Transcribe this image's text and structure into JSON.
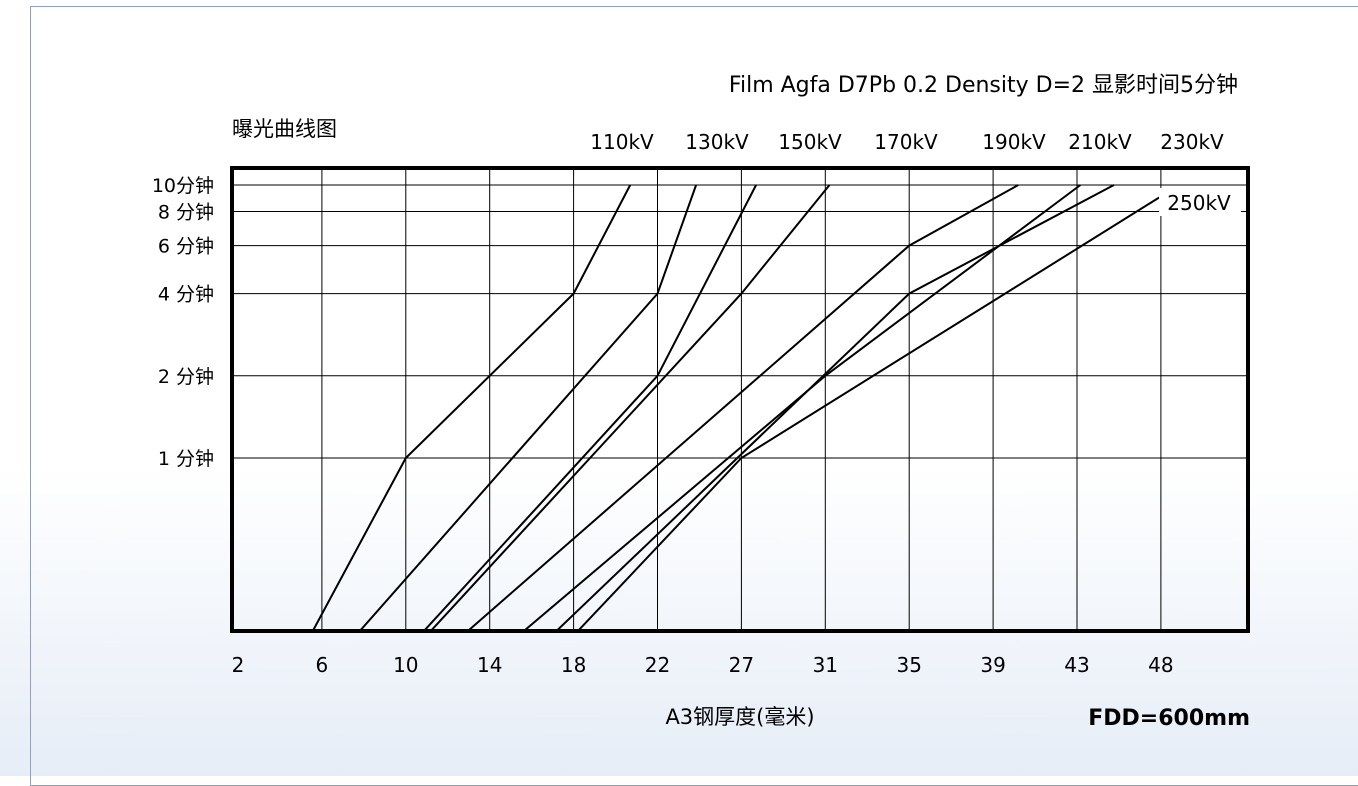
{
  "chart_data": {
    "type": "line",
    "title": "Film Agfa D7Pb 0.2 Density D=2 显影时间5分钟",
    "subtitle": "曝光曲线图",
    "xlabel": "A3钢厚度(毫米)",
    "ylabel": "",
    "footnote": "FDD=600mm",
    "x_ticks": [
      "2",
      "6",
      "10",
      "14",
      "18",
      "22",
      "27",
      "31",
      "35",
      "39",
      "43",
      "48"
    ],
    "y_ticks": [
      {
        "label": "10分钟",
        "value": 10
      },
      {
        "label": "8 分钟",
        "value": 8
      },
      {
        "label": "6 分钟",
        "value": 6
      },
      {
        "label": "4 分钟",
        "value": 4
      },
      {
        "label": "2 分钟",
        "value": 2
      },
      {
        "label": "1 分钟",
        "value": 1
      }
    ],
    "y_scale": "log",
    "ylim": [
      0.1,
      10
    ],
    "grid": true,
    "series": [
      {
        "name": "110kV",
        "values": [
          [
            3,
            0.1
          ],
          [
            10,
            1
          ],
          [
            18,
            4
          ],
          [
            20.7,
            10
          ]
        ]
      },
      {
        "name": "130kV",
        "values": [
          [
            3.6,
            0.1
          ],
          [
            22,
            4
          ],
          [
            24.3,
            10
          ]
        ]
      },
      {
        "name": "150kV",
        "values": [
          [
            6.5,
            0.1
          ],
          [
            22,
            2
          ],
          [
            27.7,
            10
          ]
        ]
      },
      {
        "name": "170kV",
        "values": [
          [
            6.8,
            0.1
          ],
          [
            27,
            4
          ],
          [
            31.2,
            10
          ]
        ]
      },
      {
        "name": "190kV",
        "values": [
          [
            7.5,
            0.1
          ],
          [
            35,
            6
          ],
          [
            40.2,
            10
          ]
        ]
      },
      {
        "name": "210kV",
        "values": [
          [
            10,
            0.1
          ],
          [
            31,
            2
          ],
          [
            43.2,
            10
          ]
        ]
      },
      {
        "name": "230kV",
        "values": [
          [
            12.2,
            0.1
          ],
          [
            35,
            4
          ],
          [
            45.2,
            10
          ]
        ]
      },
      {
        "name": "250kV",
        "values": [
          [
            13.7,
            0.1
          ],
          [
            27,
            1
          ],
          [
            47.9,
            9
          ]
        ]
      }
    ]
  }
}
